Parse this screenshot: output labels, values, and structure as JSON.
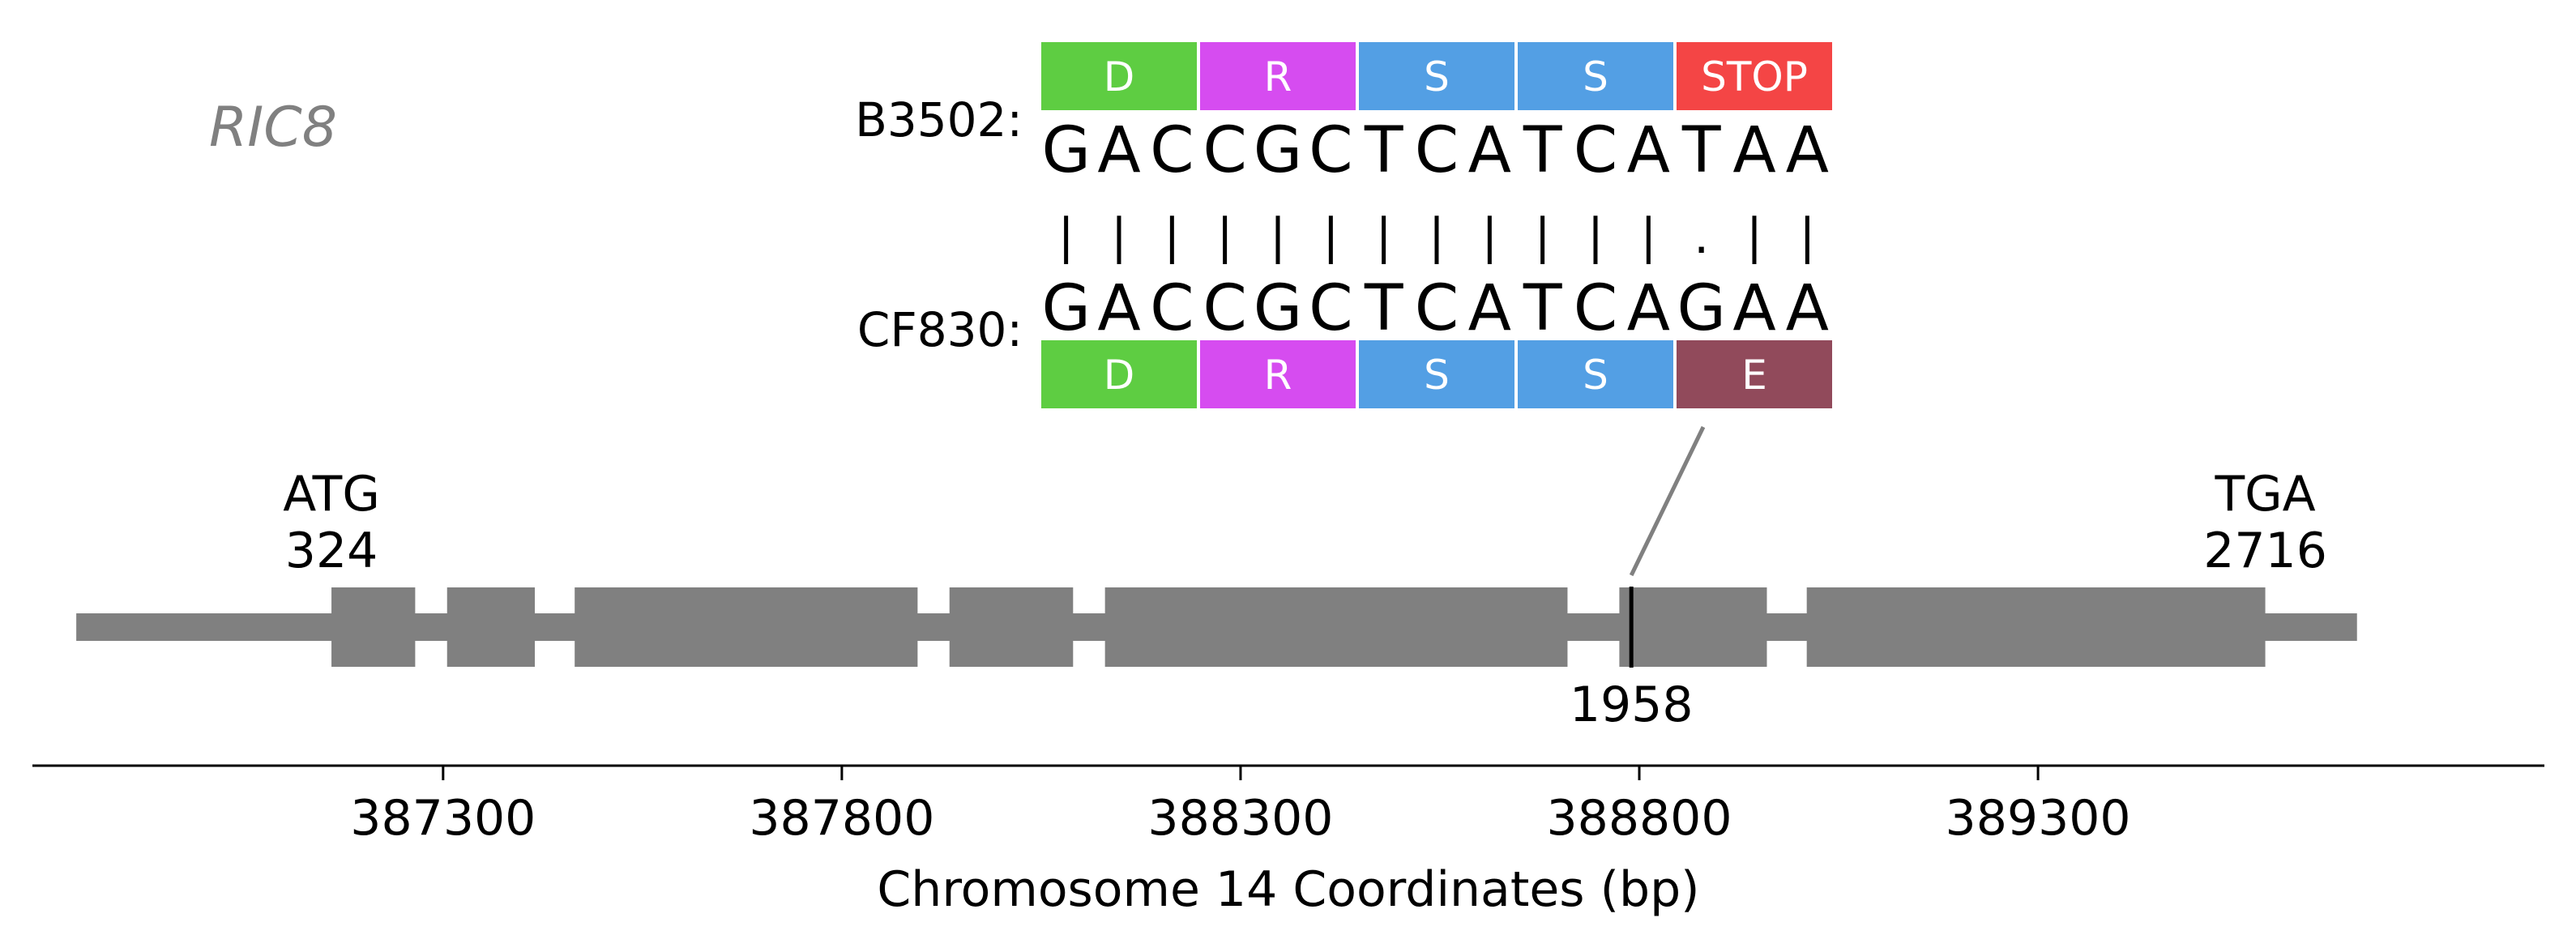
{
  "gene": {
    "name": "RIC8",
    "color": "#808080"
  },
  "alignment": {
    "seq1": {
      "label": "B3502:",
      "bases": [
        "G",
        "A",
        "C",
        "C",
        "G",
        "C",
        "T",
        "C",
        "A",
        "T",
        "C",
        "A",
        "T",
        "A",
        "A"
      ],
      "codons": [
        {
          "aa": "D",
          "color": "#5ecd42"
        },
        {
          "aa": "R",
          "color": "#d64cf0"
        },
        {
          "aa": "S",
          "color": "#539fe4"
        },
        {
          "aa": "S",
          "color": "#539fe4"
        },
        {
          "aa": "STOP",
          "color": "#f44545"
        }
      ]
    },
    "match_symbols": [
      "|",
      "|",
      "|",
      "|",
      "|",
      "|",
      "|",
      "|",
      "|",
      "|",
      "|",
      "|",
      ".",
      "|",
      "|"
    ],
    "seq2": {
      "label": "CF830:",
      "bases": [
        "G",
        "A",
        "C",
        "C",
        "G",
        "C",
        "T",
        "C",
        "A",
        "T",
        "C",
        "A",
        "G",
        "A",
        "A"
      ],
      "codons": [
        {
          "aa": "D",
          "color": "#5ecd42"
        },
        {
          "aa": "R",
          "color": "#d64cf0"
        },
        {
          "aa": "S",
          "color": "#539fe4"
        },
        {
          "aa": "S",
          "color": "#539fe4"
        },
        {
          "aa": "E",
          "color": "#914a5b"
        }
      ]
    }
  },
  "gene_model": {
    "color": "#808080",
    "utr_span": [
      386840,
      389700
    ],
    "exons": [
      [
        387160,
        387265
      ],
      [
        387305,
        387415
      ],
      [
        387465,
        387895
      ],
      [
        387935,
        388090
      ],
      [
        388130,
        388710
      ],
      [
        388775,
        388960
      ],
      [
        389010,
        389585
      ]
    ],
    "start_codon": {
      "label": "ATG",
      "pos_label": "324",
      "x": 387160
    },
    "stop_codon": {
      "label": "TGA",
      "pos_label": "2716",
      "x": 389585
    },
    "variant": {
      "pos_label": "1958",
      "x": 388790
    }
  },
  "chart_data": {
    "type": "gene_diagram",
    "xlabel": "Chromosome 14 Coordinates (bp)",
    "xlim": [
      386785,
      389935
    ],
    "xticks": [
      387300,
      387800,
      388300,
      388800,
      389300
    ]
  }
}
